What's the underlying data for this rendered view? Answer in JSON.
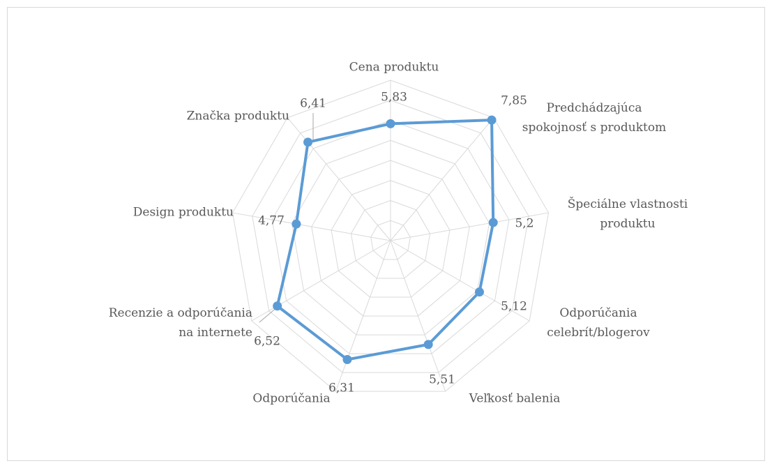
{
  "chart_data": {
    "type": "radar",
    "categories": [
      "Cena produktu",
      "Predchádzajúca spokojnosť s produktom",
      "Špeciálne vlastnosti produktu",
      "Odporúčania celebrít/blogerov",
      "Veľkosť balenia",
      "Odporúčania",
      "Recenzie a odporúčania na internete",
      "Design produktu",
      "Značka produktu"
    ],
    "values": [
      5.83,
      7.85,
      5.2,
      5.12,
      5.51,
      6.31,
      6.52,
      4.77,
      6.41
    ],
    "value_labels": [
      "5,83",
      "7,85",
      "5,2",
      "5,12",
      "5,51",
      "6,31",
      "6,52",
      "4,77",
      "6,41"
    ],
    "color": "#5b9bd5",
    "ylim": [
      0,
      8
    ],
    "yticks": [
      0,
      1,
      2,
      3,
      4,
      5,
      6,
      7,
      8
    ],
    "grid": true
  }
}
